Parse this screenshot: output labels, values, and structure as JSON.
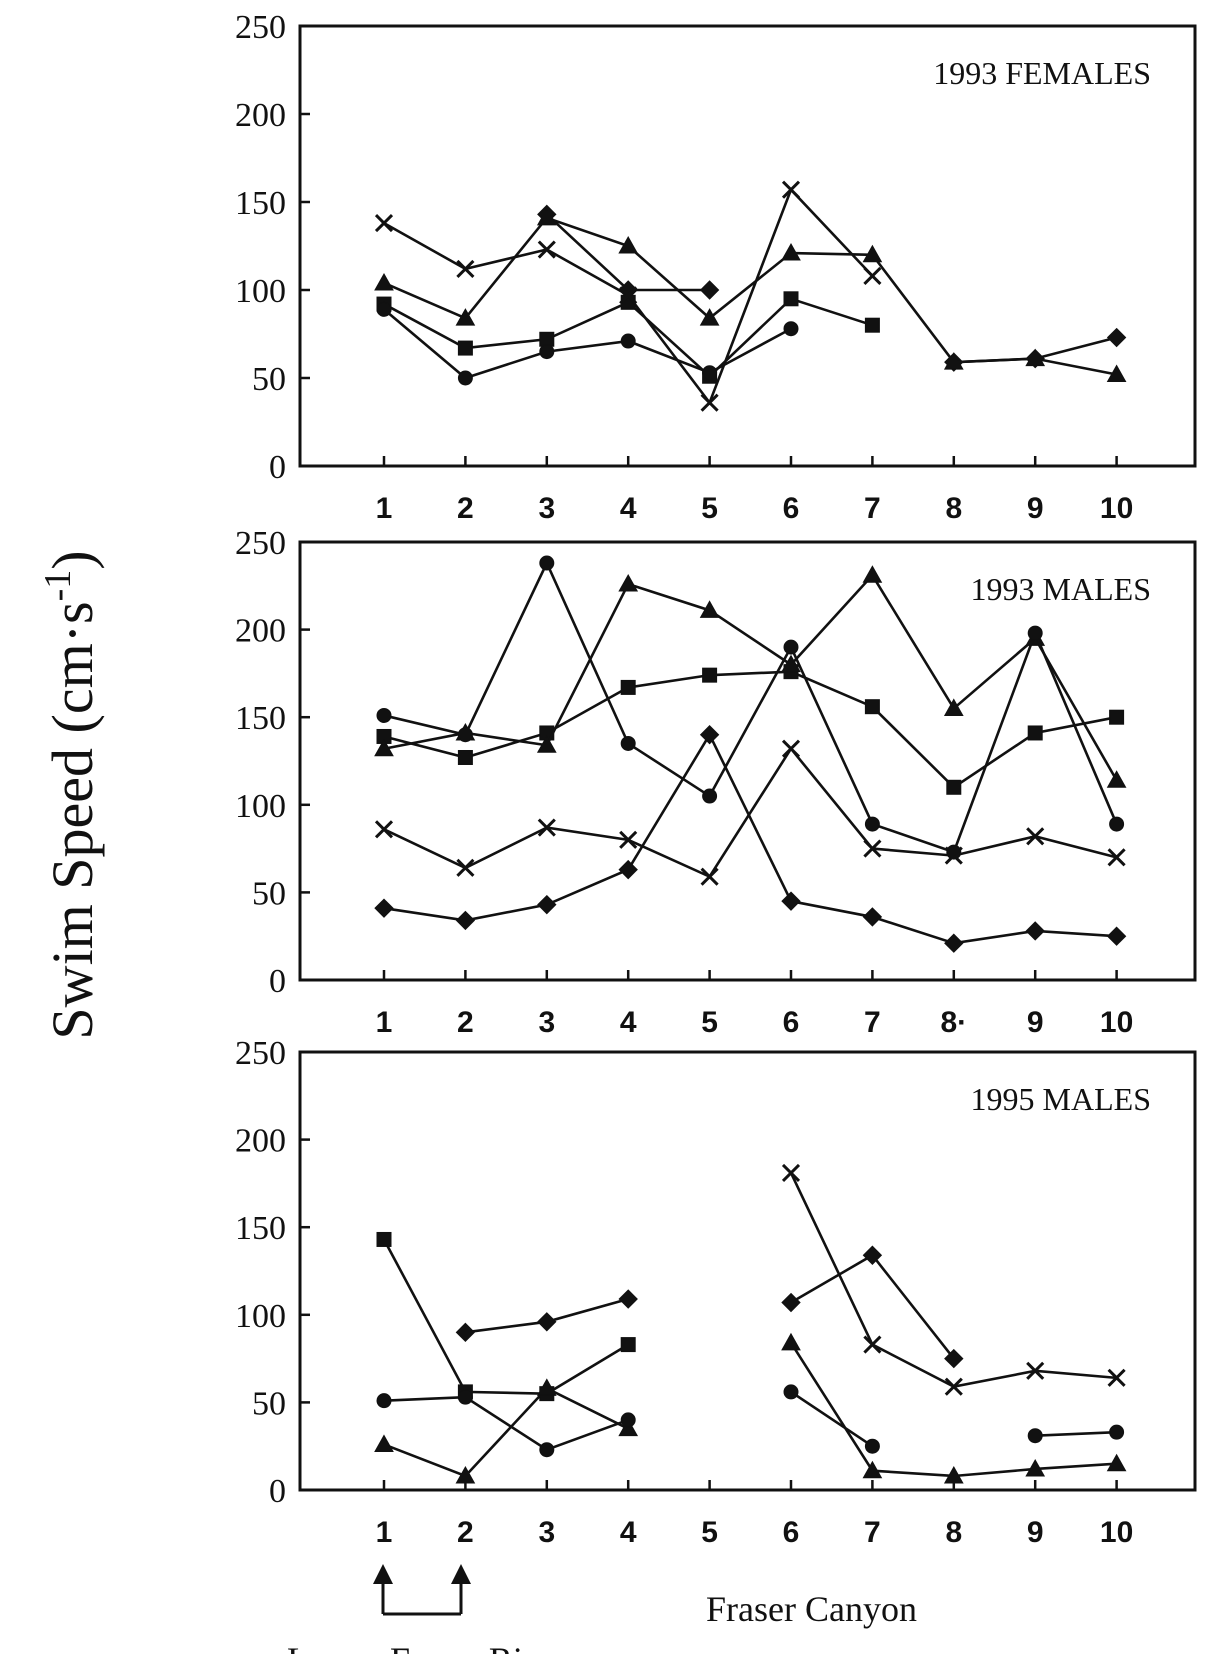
{
  "chart_data": [
    {
      "type": "line",
      "title": "1993 FEMALES",
      "x": [
        1,
        2,
        3,
        4,
        5,
        6,
        7,
        8,
        9,
        10
      ],
      "ylim": [
        0,
        250
      ],
      "yticks": [
        0,
        50,
        100,
        150,
        200,
        250
      ],
      "xticks": [
        "1",
        "2",
        "3",
        "4",
        "5",
        "6",
        "7",
        "8",
        "9",
        "10"
      ],
      "series": [
        {
          "marker": "diamond",
          "values": [
            null,
            null,
            143,
            100,
            100,
            null,
            null,
            59,
            61,
            73
          ]
        },
        {
          "marker": "square",
          "values": [
            92,
            67,
            72,
            93,
            51,
            95,
            80,
            null,
            null,
            null
          ]
        },
        {
          "marker": "triangle",
          "values": [
            104,
            84,
            141,
            125,
            84,
            121,
            120,
            59,
            61,
            52
          ]
        },
        {
          "marker": "x",
          "values": [
            138,
            112,
            123,
            97,
            36,
            157,
            108,
            null,
            null,
            null
          ]
        },
        {
          "marker": "circle",
          "values": [
            89,
            50,
            65,
            71,
            53,
            78,
            null,
            null,
            null,
            null
          ]
        }
      ]
    },
    {
      "type": "line",
      "title": "1993 MALES",
      "x": [
        1,
        2,
        3,
        4,
        5,
        6,
        7,
        8,
        9,
        10
      ],
      "ylim": [
        0,
        250
      ],
      "yticks": [
        0,
        50,
        100,
        150,
        200,
        250
      ],
      "xticks": [
        "1",
        "2",
        "3",
        "4",
        "5",
        "6",
        "7",
        "8·",
        "9",
        "10"
      ],
      "series": [
        {
          "marker": "diamond",
          "values": [
            41,
            34,
            43,
            63,
            140,
            45,
            36,
            21,
            28,
            25
          ]
        },
        {
          "marker": "square",
          "values": [
            139,
            127,
            141,
            167,
            174,
            176,
            156,
            110,
            141,
            150
          ]
        },
        {
          "marker": "triangle",
          "values": [
            132,
            141,
            134,
            226,
            211,
            180,
            231,
            155,
            195,
            114
          ]
        },
        {
          "marker": "x",
          "values": [
            86,
            64,
            87,
            80,
            59,
            132,
            75,
            71,
            82,
            70
          ]
        },
        {
          "marker": "circle",
          "values": [
            151,
            140,
            238,
            135,
            105,
            190,
            89,
            73,
            198,
            89
          ]
        }
      ]
    },
    {
      "type": "line",
      "title": "1995 MALES",
      "x": [
        1,
        2,
        3,
        4,
        5,
        6,
        7,
        8,
        9,
        10
      ],
      "ylim": [
        0,
        250
      ],
      "yticks": [
        0,
        50,
        100,
        150,
        200,
        250
      ],
      "xticks": [
        "1",
        "2",
        "3",
        "4",
        "5",
        "6",
        "7",
        "8",
        "9",
        "10"
      ],
      "series": [
        {
          "marker": "diamond",
          "values": [
            null,
            90,
            96,
            109,
            null,
            107,
            134,
            75,
            null,
            null
          ]
        },
        {
          "marker": "square",
          "values": [
            143,
            56,
            55,
            83,
            null,
            null,
            null,
            null,
            null,
            null
          ]
        },
        {
          "marker": "triangle",
          "values": [
            26,
            8,
            58,
            35,
            null,
            84,
            11,
            8,
            12,
            15
          ]
        },
        {
          "marker": "x",
          "values": [
            null,
            null,
            null,
            null,
            null,
            181,
            83,
            59,
            68,
            64
          ]
        },
        {
          "marker": "circle",
          "values": [
            51,
            53,
            23,
            40,
            null,
            56,
            25,
            null,
            31,
            33
          ]
        }
      ]
    }
  ],
  "ylabel": "Swim Speed (cm·s",
  "ylabel_sup": "-1",
  "ylabel_close": ")",
  "annotation_fraser": "Fraser Canyon",
  "annotation_lower": "Lower Fraser River"
}
